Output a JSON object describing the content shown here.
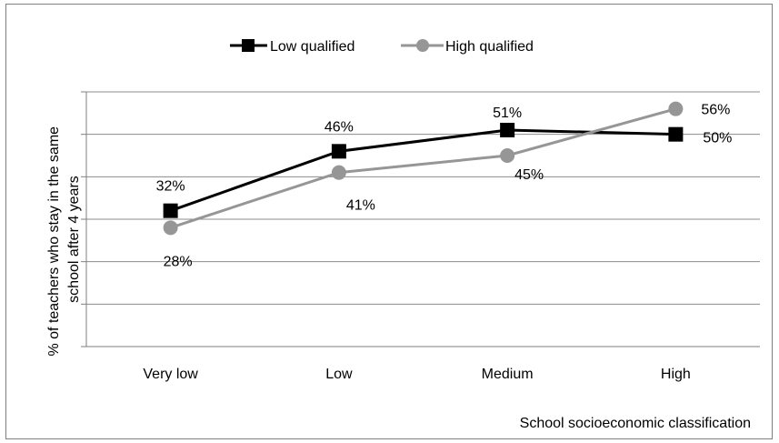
{
  "chart_data": {
    "type": "line",
    "categories": [
      "Very low",
      "Low",
      "Medium",
      "High"
    ],
    "series": [
      {
        "name": "Low qualified",
        "values": [
          32,
          46,
          51,
          50
        ],
        "labels": [
          "32%",
          "46%",
          "51%",
          "50%"
        ],
        "color": "#000000",
        "marker": "square"
      },
      {
        "name": "High qualified",
        "values": [
          28,
          41,
          45,
          56
        ],
        "labels": [
          "28%",
          "41%",
          "45%",
          "56%"
        ],
        "color": "#969696",
        "marker": "circle"
      }
    ],
    "title": "",
    "xlabel": "School socioeconomic classification",
    "ylabel": "% of teachers who stay in the same school after 4 years",
    "ylabel_lines": [
      "% of teachers who stay in the same",
      "school after 4 years"
    ],
    "ylim": [
      0,
      60
    ],
    "y_gridlines": [
      0,
      10,
      20,
      30,
      40,
      50,
      60
    ],
    "grid": true,
    "legend": "top"
  }
}
